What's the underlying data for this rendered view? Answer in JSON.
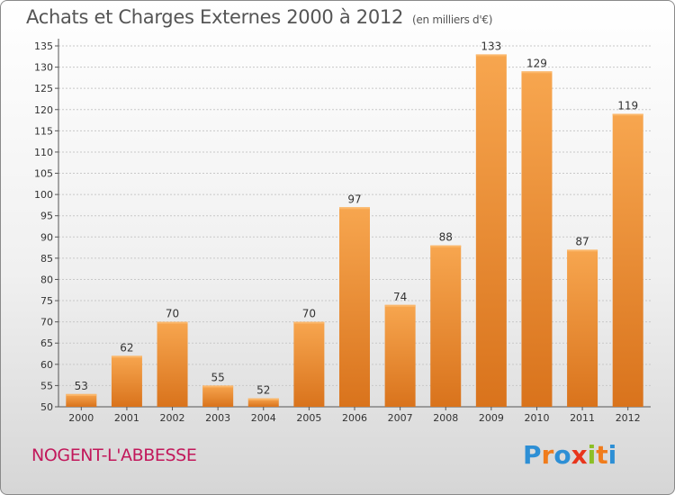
{
  "header": {
    "title": "Achats et Charges Externes 2000 à 2012",
    "unit": "(en milliers d'€)"
  },
  "footer": {
    "town": "NOGENT-L'ABBESSE",
    "logo_letters": [
      "P",
      "r",
      "o",
      "x",
      "i",
      "t",
      "i"
    ],
    "logo_colors": [
      "#2d8fd5",
      "#f07c1c",
      "#2d8fd5",
      "#e8351c",
      "#8cbf26",
      "#f07c1c",
      "#2d8fd5"
    ]
  },
  "chart_data": {
    "type": "bar",
    "categories": [
      "2000",
      "2001",
      "2002",
      "2003",
      "2004",
      "2005",
      "2006",
      "2007",
      "2008",
      "2009",
      "2010",
      "2011",
      "2012"
    ],
    "values": [
      53,
      62,
      70,
      55,
      52,
      70,
      97,
      74,
      88,
      133,
      129,
      87,
      119
    ],
    "ylim": [
      50,
      135
    ],
    "yticks": [
      50,
      55,
      60,
      65,
      70,
      75,
      80,
      85,
      90,
      95,
      100,
      105,
      110,
      115,
      120,
      125,
      130,
      135
    ],
    "grid": true,
    "bar_color_top": "#f7a64f",
    "bar_color_bottom": "#d9731c"
  }
}
